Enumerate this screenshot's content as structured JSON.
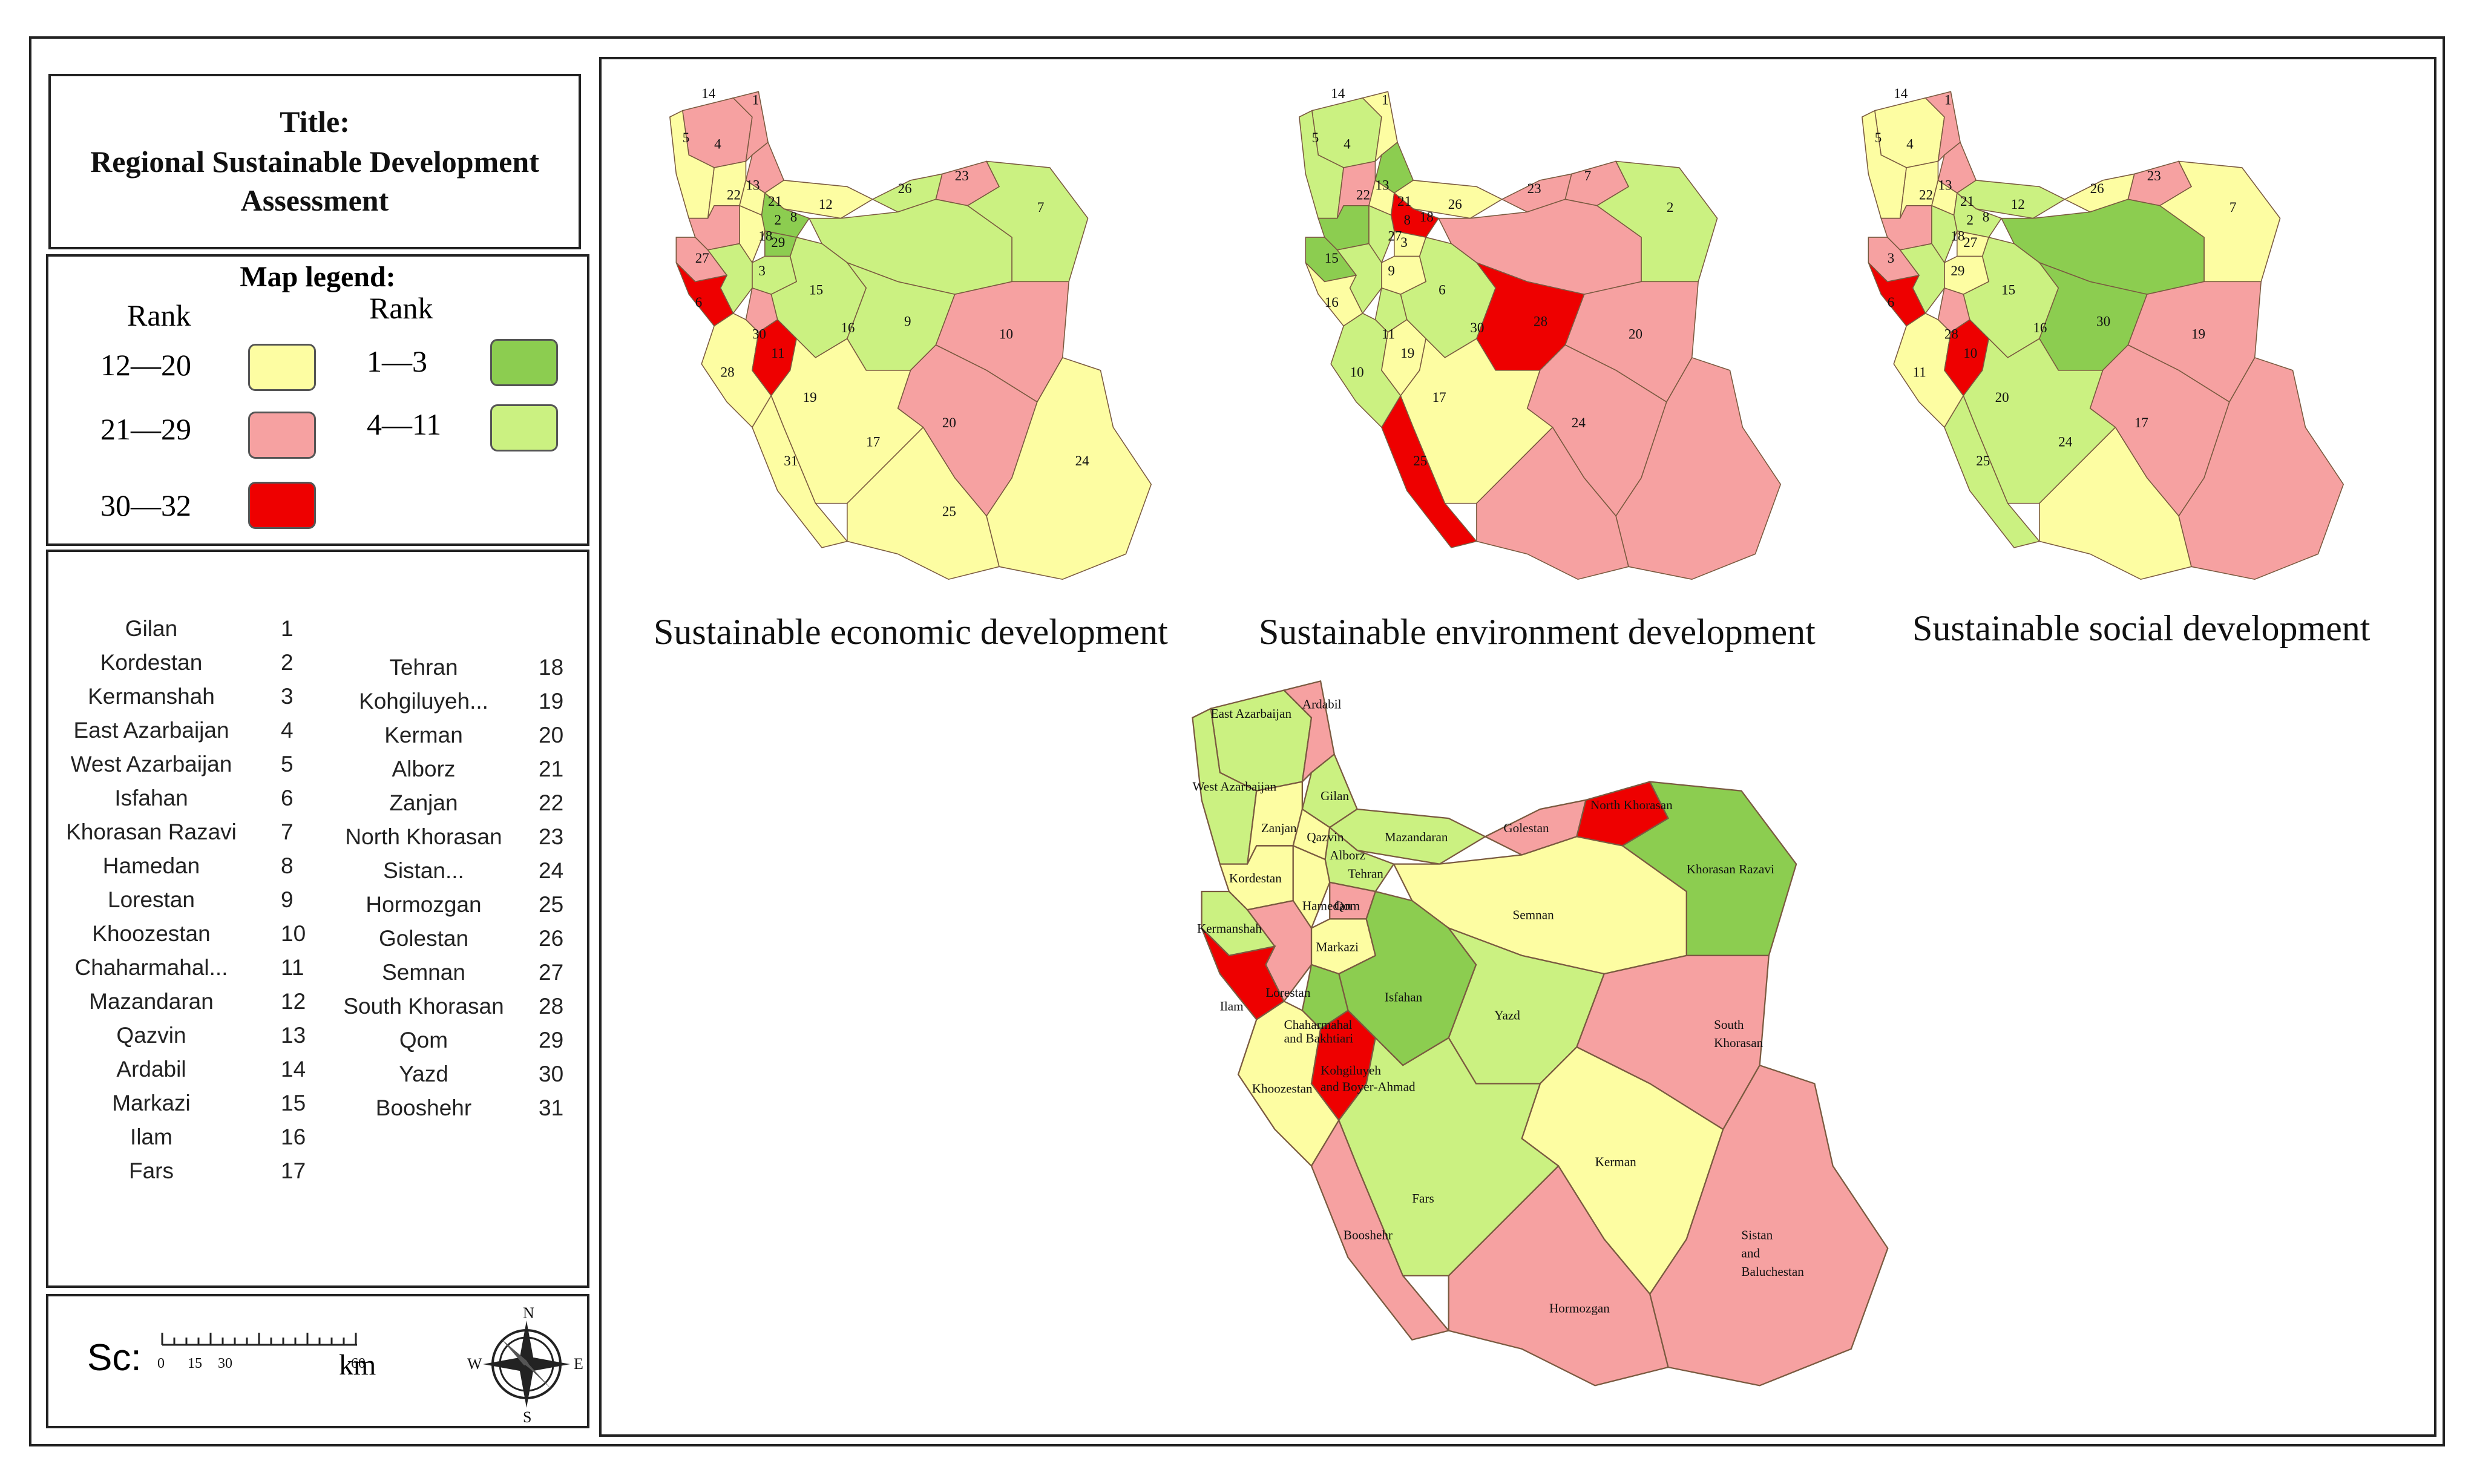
{
  "title": {
    "line1": "Title:",
    "line2": "Regional Sustainable  Development",
    "line3": "Assessment"
  },
  "legend": {
    "heading": "Map legend:",
    "rank_label": "Rank",
    "classes": [
      {
        "range": "12—20",
        "color": "#fdfda2"
      },
      {
        "range": "21—29",
        "color": "#f6a1a1"
      },
      {
        "range": "30—32",
        "color": "#ee0000"
      },
      {
        "range": "1—3",
        "color": "#8ccd50"
      },
      {
        "range": "4—11",
        "color": "#cbf181"
      }
    ]
  },
  "province_list": {
    "left": [
      {
        "name": "Gilan",
        "num": "1"
      },
      {
        "name": "Kordestan",
        "num": "2"
      },
      {
        "name": "Kermanshah",
        "num": "3"
      },
      {
        "name": "East Azarbaijan",
        "num": "4"
      },
      {
        "name": "West Azarbaijan",
        "num": "5"
      },
      {
        "name": "Isfahan",
        "num": "6"
      },
      {
        "name": "Khorasan Razavi",
        "num": "7"
      },
      {
        "name": "Hamedan",
        "num": "8"
      },
      {
        "name": "Lorestan",
        "num": "9"
      },
      {
        "name": "Khoozestan",
        "num": "10"
      },
      {
        "name": "Chaharmahal...",
        "num": "11"
      },
      {
        "name": "Mazandaran",
        "num": "12"
      },
      {
        "name": "Qazvin",
        "num": "13"
      },
      {
        "name": "Ardabil",
        "num": "14"
      },
      {
        "name": "Markazi",
        "num": "15"
      },
      {
        "name": "Ilam",
        "num": "16"
      },
      {
        "name": "Fars",
        "num": "17"
      }
    ],
    "right": [
      {
        "name": "Tehran",
        "num": "18"
      },
      {
        "name": "Kohgiluyeh...",
        "num": "19"
      },
      {
        "name": "Kerman",
        "num": "20"
      },
      {
        "name": "Alborz",
        "num": "21"
      },
      {
        "name": "Zanjan",
        "num": "22"
      },
      {
        "name": "North Khorasan",
        "num": "23"
      },
      {
        "name": "Sistan...",
        "num": "24"
      },
      {
        "name": "Hormozgan",
        "num": "25"
      },
      {
        "name": "Golestan",
        "num": "26"
      },
      {
        "name": "Semnan",
        "num": "27"
      },
      {
        "name": "South Khorasan",
        "num": "28"
      },
      {
        "name": "Qom",
        "num": "29"
      },
      {
        "name": "Yazd",
        "num": "30"
      },
      {
        "name": "Booshehr",
        "num": "31"
      }
    ]
  },
  "scale_bar": {
    "prefix": "Sc:",
    "ticks": [
      "0",
      "15",
      "30",
      "60"
    ],
    "unit": "km"
  },
  "compass": {
    "n": "N",
    "s": "S",
    "e": "E",
    "w": "W"
  },
  "small_maps": [
    {
      "caption": "Sustainable  economic  development",
      "labels": [
        "4",
        "14",
        "1",
        "5",
        "22",
        "13",
        "21",
        "12",
        "26",
        "23",
        "7",
        "2",
        "8",
        "18",
        "29",
        "27",
        "3",
        "15",
        "6",
        "16",
        "9",
        "30",
        "28",
        "11",
        "10",
        "19",
        "20",
        "31",
        "17",
        "25",
        "24"
      ]
    },
    {
      "caption": "Sustainable  environment  development",
      "labels": [
        "4",
        "14",
        "1",
        "5",
        "22",
        "13",
        "21",
        "26",
        "23",
        "7",
        "2",
        "8",
        "18",
        "27",
        "3",
        "15",
        "9",
        "6",
        "16",
        "30",
        "28",
        "11",
        "10",
        "19",
        "20",
        "17",
        "24",
        "25"
      ]
    },
    {
      "caption": "Sustainable  social development",
      "labels": [
        "4",
        "14",
        "1",
        "5",
        "22",
        "13",
        "21",
        "12",
        "26",
        "23",
        "7",
        "2",
        "8",
        "18",
        "27",
        "3",
        "29",
        "15",
        "6",
        "16",
        "30",
        "28",
        "11",
        "10",
        "19",
        "20",
        "17",
        "25",
        "24"
      ]
    }
  ],
  "large_map": {
    "labels": [
      "East Azarbaijan",
      "Ardabil",
      "West Azarbaijan",
      "Zanjan",
      "Gilan",
      "Qazvin",
      "Alborz",
      "Mazandaran",
      "Golestan",
      "North Khorasan",
      "Khorasan Razavi",
      "Tehran",
      "Semnan",
      "Kordestan",
      "Hamedan",
      "Qom",
      "Kermanshah",
      "Markazi",
      "Lorestan",
      "Isfahan",
      "Ilam",
      "Chaharmahal",
      "and Bakhtiari",
      "Yazd",
      "South",
      "Khorasan",
      "Khoozestan",
      "Kohgiluyeh",
      "and Boyer-Ahmad",
      "Kerman",
      "Booshehr",
      "Fars",
      "Hormozgan",
      "Sistan",
      "and",
      "Baluchestan"
    ]
  }
}
